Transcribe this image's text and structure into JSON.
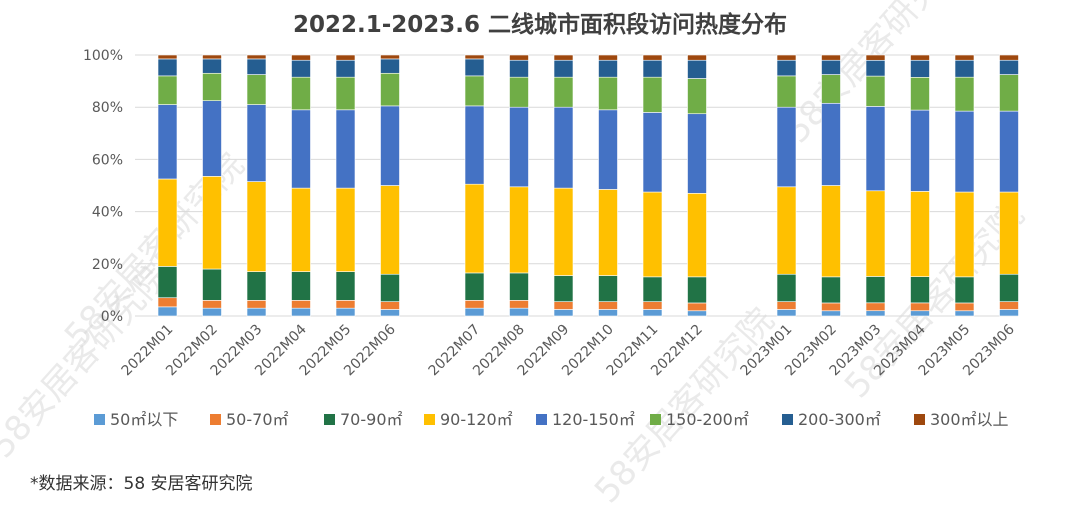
{
  "chart_data": {
    "type": "bar",
    "stacked": true,
    "normalized": true,
    "title": "2022.1-2023.6  二线城市面积段访问热度分布",
    "y_ticks": [
      "0%",
      "20%",
      "40%",
      "60%",
      "80%",
      "100%"
    ],
    "ylim": [
      0,
      100
    ],
    "categories": [
      "2022M01",
      "2022M02",
      "2022M03",
      "2022M04",
      "2022M05",
      "2022M06",
      "2022M07",
      "2022M08",
      "2022M09",
      "2022M10",
      "2022M11",
      "2022M12",
      "2023M01",
      "2023M02",
      "2023M03",
      "2023M04",
      "2023M05",
      "2023M06"
    ],
    "groups": [
      [
        0,
        1,
        2,
        3,
        4,
        5
      ],
      [
        6,
        7,
        8,
        9,
        10,
        11
      ],
      [
        12,
        13,
        14,
        15,
        16,
        17
      ]
    ],
    "series": [
      {
        "name": "50㎡以下",
        "color": "#5B9BD5",
        "values": [
          3.5,
          3,
          3,
          3,
          3,
          2.5,
          3,
          3,
          2.5,
          2.5,
          2.5,
          2,
          2.5,
          2,
          2,
          2,
          2,
          2.5
        ]
      },
      {
        "name": "50-70㎡",
        "color": "#ED7D31",
        "values": [
          3.5,
          3,
          3,
          3,
          3,
          3,
          3,
          3,
          3,
          3,
          3,
          3,
          3,
          3,
          3,
          3,
          3,
          3
        ]
      },
      {
        "name": "70-90㎡",
        "color": "#217346",
        "values": [
          12,
          12,
          11,
          11,
          11,
          10.5,
          10.5,
          10.5,
          10,
          10,
          9.5,
          10,
          10.5,
          10,
          10,
          10,
          10,
          10.5
        ]
      },
      {
        "name": "90-120㎡",
        "color": "#FFC000",
        "values": [
          33.5,
          35.5,
          34.5,
          32,
          32,
          34,
          34,
          33,
          33.5,
          33,
          32.5,
          32,
          33.5,
          35,
          32.5,
          32.5,
          32.5,
          31.5
        ]
      },
      {
        "name": "120-150㎡",
        "color": "#4472C4",
        "values": [
          28.5,
          29,
          29.5,
          30,
          30,
          30.5,
          30,
          30.5,
          31,
          30.5,
          30.5,
          30.5,
          30.5,
          31.5,
          32,
          31,
          31,
          31
        ]
      },
      {
        "name": "150-200㎡",
        "color": "#70AD47",
        "values": [
          11,
          10.5,
          11.5,
          12.5,
          12.5,
          12.5,
          11.5,
          11.5,
          11.5,
          12.5,
          13.5,
          13.5,
          12,
          11,
          11.5,
          12.5,
          13,
          14
        ]
      },
      {
        "name": "200-300㎡",
        "color": "#255E91",
        "values": [
          6.5,
          5.5,
          6,
          6.5,
          6.5,
          5.5,
          6.5,
          6.5,
          6.5,
          6.5,
          6.5,
          7,
          6,
          5.5,
          6,
          6.5,
          6.5,
          5.5
        ]
      },
      {
        "name": "300㎡以上",
        "color": "#9E480E",
        "values": [
          1.5,
          1.5,
          1.5,
          2,
          2,
          1.5,
          1.5,
          2,
          2,
          2,
          2,
          2,
          2,
          2,
          2,
          2,
          2,
          2
        ]
      }
    ]
  },
  "source_note": "*数据来源：58 安居客研究院",
  "watermark_text": "58安居客研究院"
}
